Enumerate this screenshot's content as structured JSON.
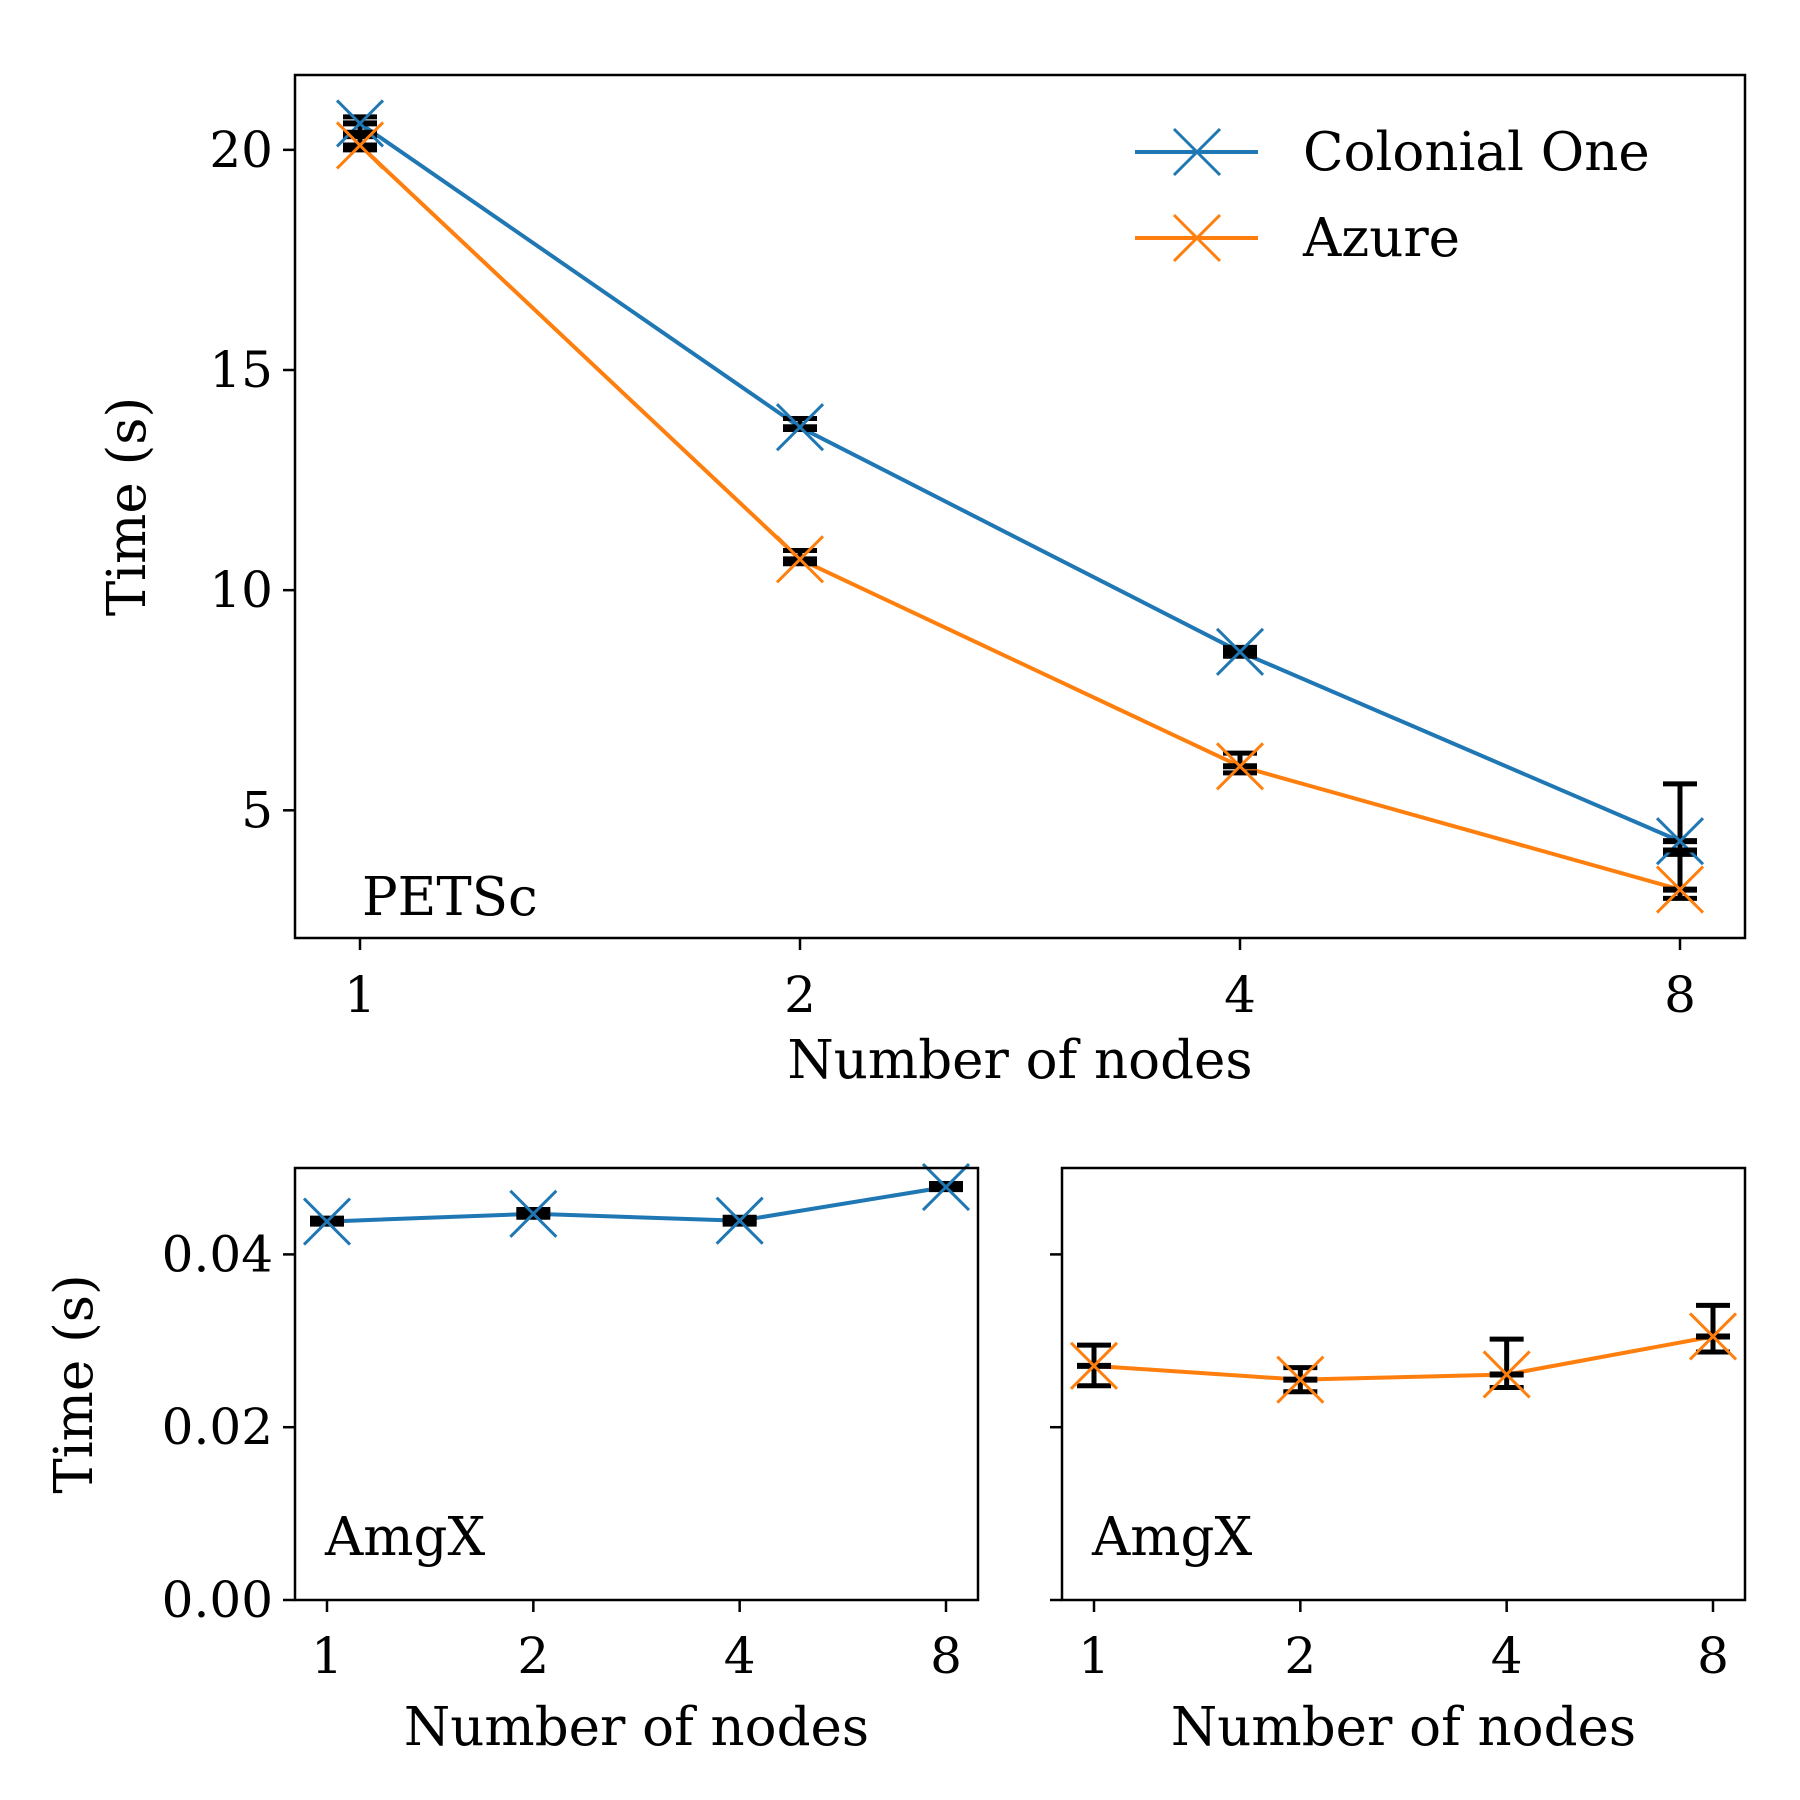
{
  "colors": {
    "colonial_one": "#1f77b4",
    "azure": "#ff7f0e",
    "errorbar": "#000000"
  },
  "legend": {
    "placement": "top-right",
    "entries": [
      "Colonial One",
      "Azure"
    ]
  },
  "chart_data": [
    {
      "type": "line",
      "annotation": "PETSc",
      "xlabel": "Number of nodes",
      "ylabel": "Time (s)",
      "x": [
        1,
        2,
        4,
        8
      ],
      "xscale": "log2",
      "xticks": [
        "1",
        "2",
        "4",
        "8"
      ],
      "ylim": [
        2.1,
        21.7
      ],
      "yticks": [
        "5",
        "10",
        "15",
        "20"
      ],
      "grid": false,
      "series": [
        {
          "name": "Colonial One",
          "color": "#1f77b4",
          "marker": "x",
          "values": [
            20.6,
            13.7,
            8.6,
            4.3
          ],
          "err_low": [
            20.3,
            13.65,
            8.5,
            4.0
          ],
          "err_high": [
            20.75,
            13.9,
            8.7,
            5.6
          ]
        },
        {
          "name": "Azure",
          "color": "#ff7f0e",
          "marker": "x",
          "values": [
            20.1,
            10.7,
            6.0,
            3.2
          ],
          "err_low": [
            20.0,
            10.6,
            5.85,
            3.0
          ],
          "err_high": [
            20.4,
            10.9,
            6.3,
            4.1
          ]
        }
      ]
    },
    {
      "type": "line",
      "annotation": "AmgX",
      "xlabel": "Number of nodes",
      "ylabel": "Time (s)",
      "x": [
        1,
        2,
        4,
        8
      ],
      "xscale": "log2",
      "xticks": [
        "1",
        "2",
        "4",
        "8"
      ],
      "ylim": [
        0.0,
        0.05
      ],
      "yticks": [
        "0.00",
        "0.02",
        "0.04"
      ],
      "grid": false,
      "series": [
        {
          "name": "Colonial One",
          "color": "#1f77b4",
          "marker": "x",
          "values": [
            0.0438,
            0.0447,
            0.0439,
            0.0478
          ],
          "err_low": [
            0.0435,
            0.0443,
            0.0435,
            0.0475
          ],
          "err_high": [
            0.0442,
            0.0452,
            0.0443,
            0.0482
          ]
        }
      ]
    },
    {
      "type": "line",
      "annotation": "AmgX",
      "xlabel": "Number of nodes",
      "ylabel": "",
      "x": [
        1,
        2,
        4,
        8
      ],
      "xscale": "log2",
      "xticks": [
        "1",
        "2",
        "4",
        "8"
      ],
      "ylim": [
        0.0,
        0.05
      ],
      "yticks": [],
      "grid": false,
      "series": [
        {
          "name": "Azure",
          "color": "#ff7f0e",
          "marker": "x",
          "values": [
            0.0271,
            0.0255,
            0.0261,
            0.0305
          ],
          "err_low": [
            0.0248,
            0.0241,
            0.0246,
            0.0287
          ],
          "err_high": [
            0.0295,
            0.0269,
            0.0302,
            0.0341
          ]
        }
      ]
    }
  ]
}
